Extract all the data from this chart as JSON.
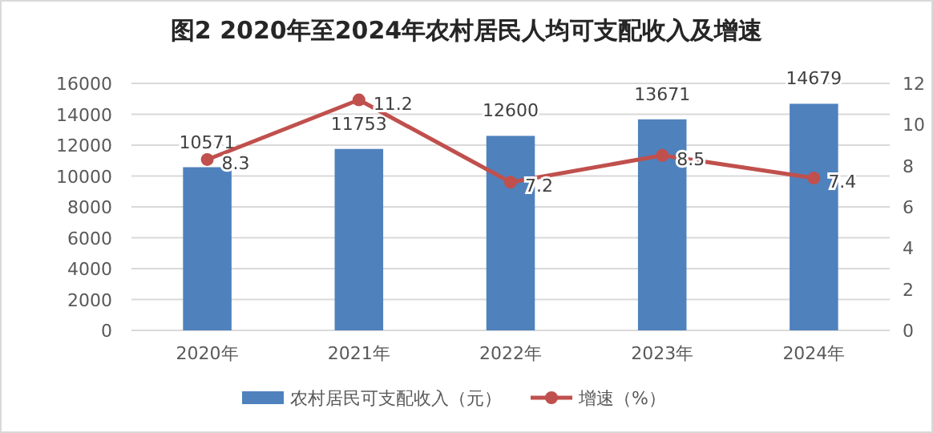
{
  "chart_data": {
    "type": "bar",
    "title": "图2  2020年至2024年农村居民人均可支配收入及增速",
    "categories": [
      "2020年",
      "2021年",
      "2022年",
      "2023年",
      "2024年"
    ],
    "series": [
      {
        "name": "农村居民可支配收入（元）",
        "color": "#4f81bd",
        "values": [
          10571,
          11753,
          12600,
          13671,
          14679
        ]
      },
      {
        "name": "增速（%）",
        "type": "line",
        "axis": "y2",
        "color": "#c0504d",
        "values": [
          8.3,
          11.2,
          7.2,
          8.5,
          7.4
        ]
      }
    ],
    "ylim": [
      0,
      16000
    ],
    "yticks": [
      0,
      2000,
      4000,
      6000,
      8000,
      10000,
      12000,
      14000,
      16000
    ],
    "y2lim": [
      0,
      12
    ],
    "y2ticks": [
      0,
      2,
      4,
      6,
      8,
      10,
      12
    ],
    "grid": "y",
    "legend": "bottom",
    "marker": "circle",
    "line_style": "solid",
    "data_labels": true
  }
}
